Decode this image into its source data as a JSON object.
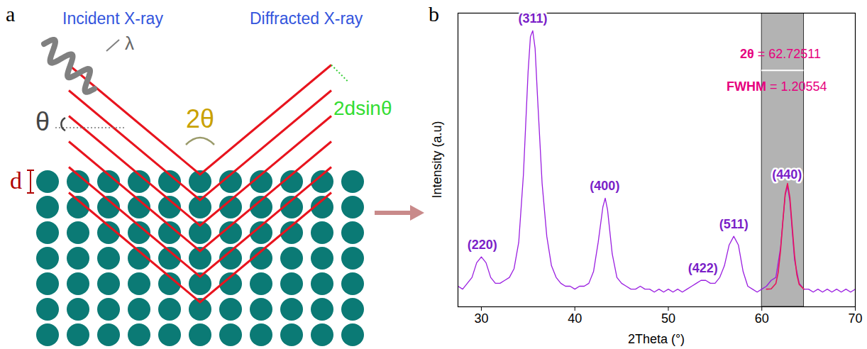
{
  "diagram": {
    "panel": "a",
    "incident": "Incident X-ray",
    "diffracted": "Diffracted X-ray",
    "wavelength": "λ",
    "angle": "θ",
    "scattering_angle": "2θ",
    "path_difference": "2dsinθ",
    "spacing": "d"
  },
  "chart_data": {
    "type": "line",
    "panel": "b",
    "x_label": "2Theta (°)",
    "y_label": "Intensity (a.u)",
    "xlim": [
      27.5,
      70
    ],
    "xticks": [
      30,
      40,
      50,
      60,
      70
    ],
    "ylim": [
      0,
      100
    ],
    "tick_labels": "x",
    "color": "#9a1ee0",
    "x": [
      27.5,
      28,
      28.5,
      29,
      29.5,
      30,
      30.5,
      31,
      31.5,
      32,
      32.5,
      33,
      33.5,
      34,
      34.5,
      35,
      35.25,
      35.5,
      35.75,
      36,
      36.5,
      37,
      37.5,
      38,
      38.5,
      39,
      39.5,
      40,
      40.5,
      41,
      41.5,
      42,
      42.5,
      43,
      43.25,
      43.5,
      44,
      44.5,
      45,
      45.5,
      46,
      46.5,
      47,
      47.5,
      48,
      48.5,
      49,
      49.5,
      50,
      50.5,
      51,
      51.5,
      52,
      52.5,
      53,
      53.5,
      54,
      54.5,
      55,
      55.5,
      56,
      56.5,
      57,
      57.5,
      58,
      58.5,
      59,
      59.5,
      60,
      60.5,
      61,
      61.5,
      62,
      62.5,
      62.75,
      63,
      63.5,
      64,
      64.5,
      65,
      65.5,
      66,
      66.5,
      67,
      67.5,
      68,
      68.5,
      69,
      69.5,
      70
    ],
    "values": [
      7,
      6,
      8,
      10,
      15,
      17,
      15,
      10,
      8,
      8,
      9,
      10,
      13,
      22,
      45,
      80,
      92,
      94,
      88,
      72,
      42,
      24,
      14,
      10,
      8,
      7,
      7,
      6,
      7,
      7,
      8,
      12,
      22,
      34,
      37,
      33,
      18,
      10,
      8,
      7,
      6,
      6,
      7,
      6,
      6,
      5,
      6,
      5,
      6,
      5,
      6,
      5,
      6,
      7,
      8,
      9,
      9,
      8,
      8,
      10,
      14,
      21,
      24,
      21,
      12,
      7,
      6,
      5,
      6,
      7,
      9,
      10,
      20,
      38,
      41,
      36,
      16,
      8,
      6,
      6,
      5,
      6,
      5,
      6,
      5,
      6,
      5,
      6,
      5,
      6
    ],
    "peaks": [
      {
        "label": "(220)",
        "x": 30.1,
        "y": 17
      },
      {
        "label": "(311)",
        "x": 35.5,
        "y": 94
      },
      {
        "label": "(400)",
        "x": 43.2,
        "y": 37
      },
      {
        "label": "(422)",
        "x": 53.7,
        "y": 9
      },
      {
        "label": "(511)",
        "x": 57.0,
        "y": 24
      },
      {
        "label": "(440)",
        "x": 62.7,
        "y": 41
      }
    ],
    "highlight": [
      60,
      64.5
    ],
    "fit": {
      "color": "#e8145a",
      "x": [
        60.5,
        61,
        61.5,
        61.75,
        62,
        62.25,
        62.5,
        62.75,
        63,
        63.25,
        63.5,
        63.75,
        64,
        64.5
      ],
      "values": [
        6,
        6.1,
        7.9,
        11.7,
        19,
        29,
        38.4,
        42,
        37.3,
        27.3,
        17.5,
        10.9,
        7.6,
        6
      ]
    },
    "annotations": [
      "2θ = 62.72511",
      "FWHM = 1.20554"
    ]
  }
}
